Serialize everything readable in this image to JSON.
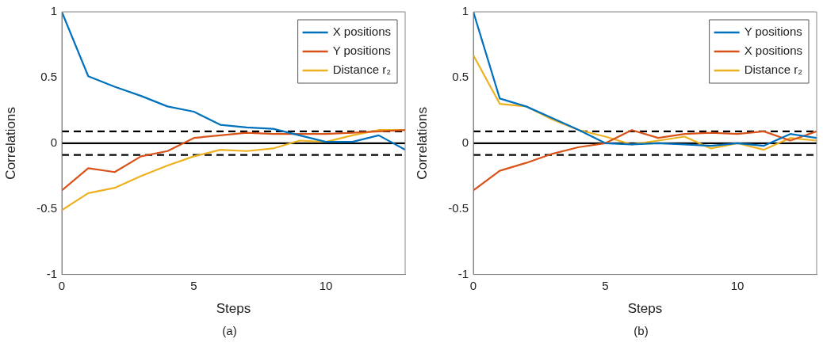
{
  "chart_data": [
    {
      "type": "line",
      "xlabel": "Steps",
      "ylabel": "Correlations",
      "x": [
        0,
        1,
        2,
        3,
        4,
        5,
        6,
        7,
        8,
        9,
        10,
        11,
        12,
        13
      ],
      "xlim": [
        0,
        13
      ],
      "xticks": [
        0,
        5,
        10
      ],
      "ylim": [
        -1,
        1
      ],
      "yticks": [
        -1,
        -0.5,
        0,
        0.5,
        1
      ],
      "grid": false,
      "legend": "top right",
      "line_style": "solid",
      "marker": "none",
      "series": [
        {
          "name": "X positions",
          "color": "#0072bd",
          "values": [
            1,
            0.51,
            0.43,
            0.36,
            0.28,
            0.24,
            0.14,
            0.12,
            0.11,
            0.06,
            0.01,
            0.01,
            0.06,
            -0.05
          ]
        },
        {
          "name": "Y positions",
          "color": "#d95319",
          "values": [
            -0.36,
            -0.19,
            -0.22,
            -0.1,
            -0.06,
            0.04,
            0.06,
            0.08,
            0.07,
            0.07,
            0.07,
            0.08,
            0.09,
            0.1
          ]
        },
        {
          "name": "Distance r₂",
          "color": "#edb120",
          "values": [
            -0.51,
            -0.38,
            -0.34,
            -0.25,
            -0.17,
            -0.1,
            -0.05,
            -0.06,
            -0.04,
            0.02,
            0.01,
            0.06,
            0.1,
            0.1
          ]
        }
      ],
      "ref_lines": [
        {
          "axis": "y",
          "value": 0,
          "color": "#000000",
          "line_style": "solid"
        },
        {
          "axis": "y",
          "value": 0.09,
          "color": "#000000",
          "line_style": "dashed"
        },
        {
          "axis": "y",
          "value": -0.09,
          "color": "#000000",
          "line_style": "dashed"
        }
      ],
      "annotations": [
        "(a)"
      ]
    },
    {
      "type": "line",
      "xlabel": "Steps",
      "ylabel": "Correlations",
      "x": [
        0,
        1,
        2,
        3,
        4,
        5,
        6,
        7,
        8,
        9,
        10,
        11,
        12,
        13
      ],
      "xlim": [
        0,
        13
      ],
      "xticks": [
        0,
        5,
        10
      ],
      "ylim": [
        -1,
        1
      ],
      "yticks": [
        -1,
        -0.5,
        0,
        0.5,
        1
      ],
      "grid": false,
      "legend": "top right",
      "line_style": "solid",
      "marker": "none",
      "series": [
        {
          "name": "Y positions",
          "color": "#0072bd",
          "values": [
            1,
            0.34,
            0.28,
            0.19,
            0.1,
            0,
            -0.01,
            0,
            -0.01,
            -0.02,
            0,
            -0.02,
            0.07,
            0.04
          ]
        },
        {
          "name": "X positions",
          "color": "#d95319",
          "values": [
            -0.36,
            -0.21,
            -0.15,
            -0.08,
            -0.03,
            0,
            0.1,
            0.04,
            0.07,
            0.08,
            0.07,
            0.09,
            0.02,
            0.09
          ]
        },
        {
          "name": "Distance r₂",
          "color": "#edb120",
          "values": [
            0.67,
            0.3,
            0.28,
            0.18,
            0.1,
            0.05,
            -0.01,
            0.02,
            0.05,
            -0.04,
            0,
            -0.05,
            0.04,
            0.02
          ]
        }
      ],
      "ref_lines": [
        {
          "axis": "y",
          "value": 0,
          "color": "#000000",
          "line_style": "solid"
        },
        {
          "axis": "y",
          "value": 0.09,
          "color": "#000000",
          "line_style": "dashed"
        },
        {
          "axis": "y",
          "value": -0.09,
          "color": "#000000",
          "line_style": "dashed"
        }
      ],
      "annotations": [
        "(b)"
      ]
    }
  ]
}
